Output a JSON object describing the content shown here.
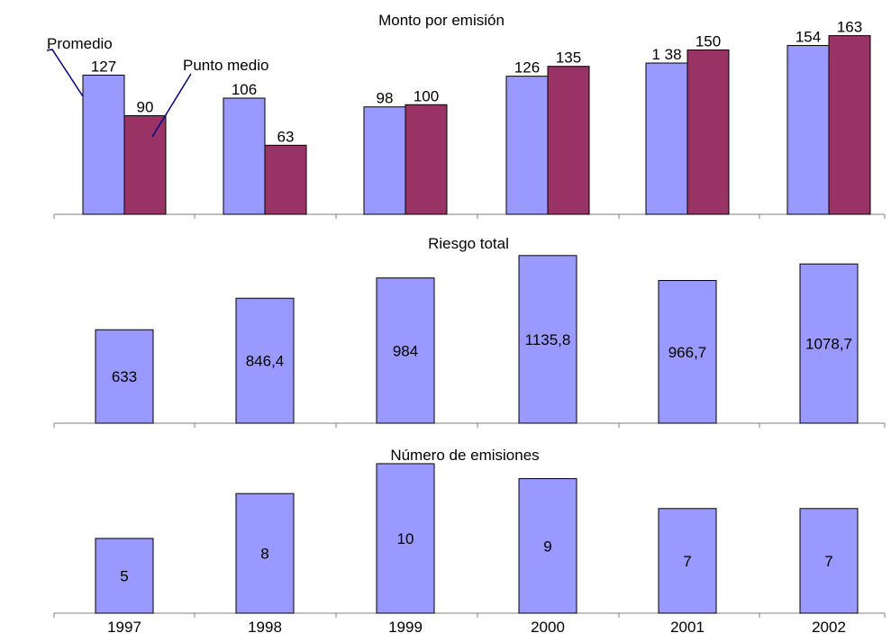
{
  "colors": {
    "promedio": "#9999FF",
    "punto_medio": "#993366",
    "axis": "#808080",
    "callout": "#000080"
  },
  "chart_data": [
    {
      "type": "bar",
      "title": "Monto por emisión",
      "categories": [
        "1997",
        "1998",
        "1999",
        "2000",
        "2001",
        "2002"
      ],
      "series": [
        {
          "name": "Promedio",
          "values": [
            127,
            106,
            98,
            126,
            138,
            154
          ],
          "labels": [
            "127",
            "106",
            "98",
            "126",
            "1   38",
            "154"
          ]
        },
        {
          "name": "Punto medio",
          "values": [
            90,
            63,
            100,
            135,
            150,
            163
          ],
          "labels": [
            "90",
            "63",
            "100",
            "135",
            "150",
            "163"
          ]
        }
      ],
      "annotations": [
        "Promedio",
        "Punto medio"
      ],
      "ylim": [
        0,
        175
      ]
    },
    {
      "type": "bar",
      "title": "Riesgo total",
      "categories": [
        "1997",
        "1998",
        "1999",
        "2000",
        "2001",
        "2002"
      ],
      "series": [
        {
          "values": [
            633,
            846.4,
            984,
            1135.8,
            966.7,
            1078.7
          ],
          "labels": [
            "633",
            "846,4",
            "984",
            "1135,8",
            "966,7",
            "1078,7"
          ]
        }
      ],
      "ylim": [
        0,
        1220
      ]
    },
    {
      "type": "bar",
      "title": "Número de emisiones",
      "categories": [
        "1997",
        "1998",
        "1999",
        "2000",
        "2001",
        "2002"
      ],
      "series": [
        {
          "values": [
            5,
            8,
            10,
            9,
            7,
            7
          ],
          "labels": [
            "5",
            "8",
            "10",
            "9",
            "7",
            "7"
          ]
        }
      ],
      "ylim": [
        0,
        10.6
      ]
    }
  ]
}
